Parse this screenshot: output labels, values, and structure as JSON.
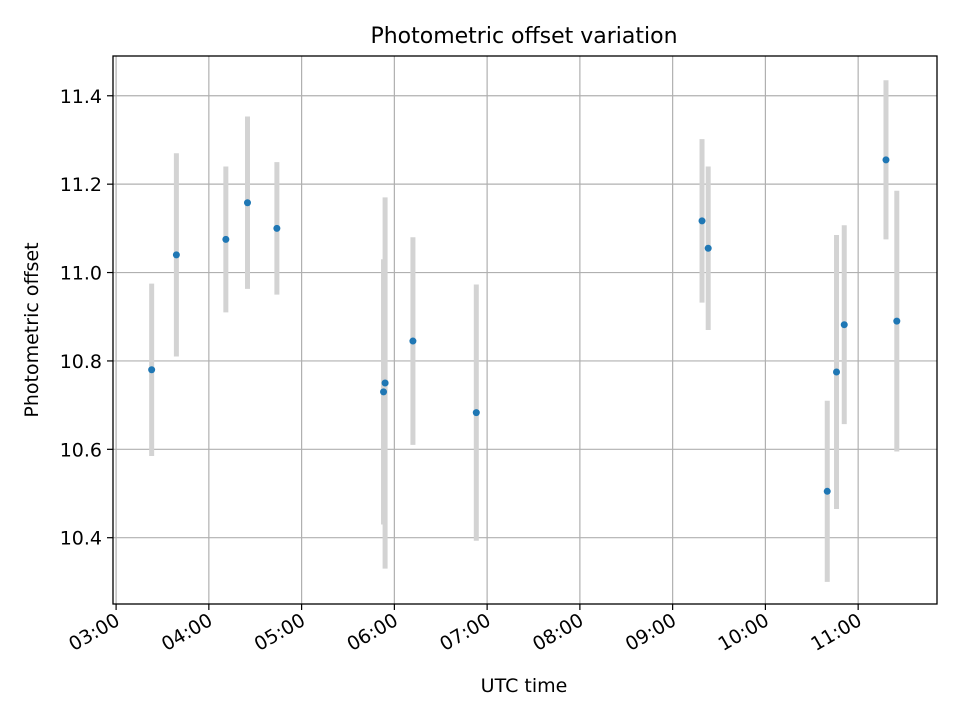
{
  "chart_data": {
    "type": "scatter",
    "title": "Photometric offset variation",
    "xlabel": "UTC time",
    "ylabel": "Photometric offset",
    "x_tick_labels": [
      "03:00",
      "04:00",
      "05:00",
      "06:00",
      "07:00",
      "08:00",
      "09:00",
      "10:00",
      "11:00"
    ],
    "y_tick_labels": [
      "10.4",
      "10.6",
      "10.8",
      "11.0",
      "11.2",
      "11.4"
    ],
    "xlim": [
      "02:58",
      "11:51"
    ],
    "ylim": [
      10.25,
      11.49
    ],
    "grid": true,
    "series": [
      {
        "marker_color": "#1f77b4",
        "errorbar_color": "#d3d3d3",
        "points": [
          {
            "x": "03:23",
            "y": 10.78,
            "err": 0.195
          },
          {
            "x": "03:39",
            "y": 11.04,
            "err": 0.23
          },
          {
            "x": "04:11",
            "y": 11.075,
            "err": 0.165
          },
          {
            "x": "04:25",
            "y": 11.158,
            "err": 0.195
          },
          {
            "x": "04:44",
            "y": 11.1,
            "err": 0.15
          },
          {
            "x": "05:53",
            "y": 10.73,
            "err": 0.3
          },
          {
            "x": "05:54",
            "y": 10.75,
            "err": 0.42
          },
          {
            "x": "06:12",
            "y": 10.845,
            "err": 0.235
          },
          {
            "x": "06:53",
            "y": 10.683,
            "err": 0.29
          },
          {
            "x": "09:19",
            "y": 11.117,
            "err": 0.185
          },
          {
            "x": "09:23",
            "y": 11.055,
            "err": 0.185
          },
          {
            "x": "10:40",
            "y": 10.505,
            "err": 0.205
          },
          {
            "x": "10:46",
            "y": 10.775,
            "err": 0.31
          },
          {
            "x": "10:51",
            "y": 10.882,
            "err": 0.225
          },
          {
            "x": "11:18",
            "y": 11.255,
            "err": 0.18
          },
          {
            "x": "11:25",
            "y": 10.89,
            "err": 0.295
          }
        ]
      }
    ]
  }
}
